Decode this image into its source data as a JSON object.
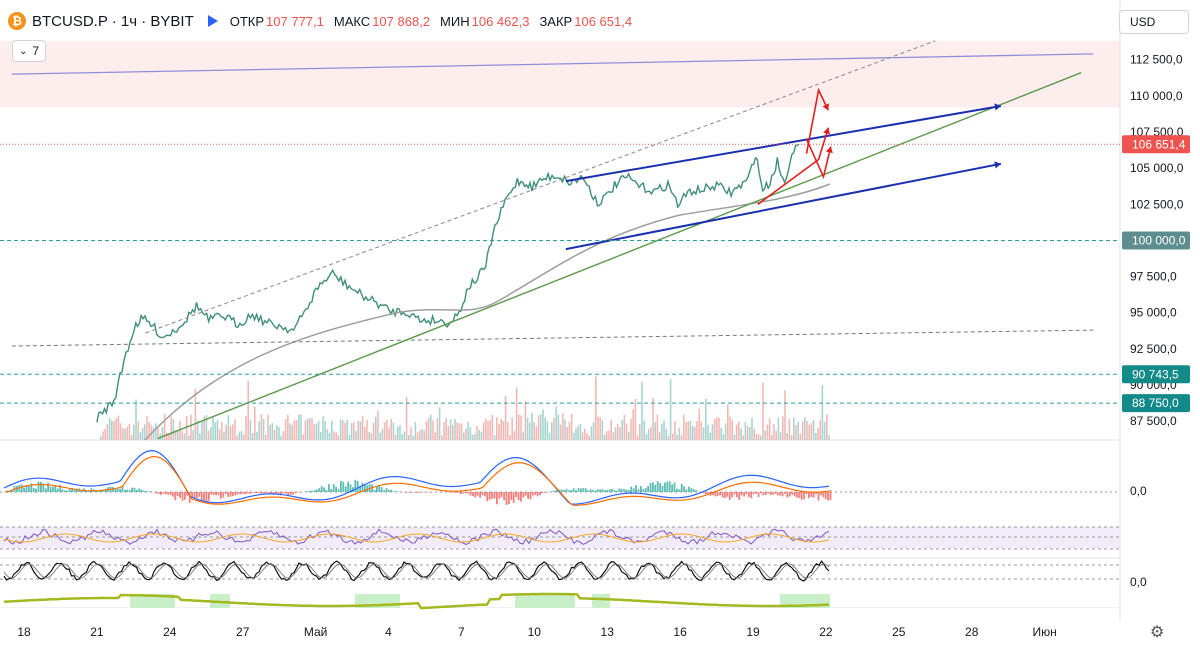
{
  "header": {
    "symbol": "BTCUSD.P · 1ч · BYBIT",
    "open_label": "ОТКР",
    "open_value": "107 777,1",
    "high_label": "МАКС",
    "high_value": "107 868,2",
    "low_label": "МИН",
    "low_value": "106 462,3",
    "close_label": "ЗАКР",
    "close_value": "106 651,4",
    "indicators_count": "7",
    "currency": "USD"
  },
  "chart_data": {
    "type": "line",
    "title": "BTCUSD.P · 1ч · BYBIT",
    "ylim": [
      86200,
      114000
    ],
    "y_ticks": [
      {
        "value": 112500,
        "label": "112 500,0"
      },
      {
        "value": 110000,
        "label": "110 000,0"
      },
      {
        "value": 107500,
        "label": "107 500,0"
      },
      {
        "value": 105000,
        "label": "105 000,0"
      },
      {
        "value": 102500,
        "label": "102 500,0"
      },
      {
        "value": 97500,
        "label": "97 500,0"
      },
      {
        "value": 95000,
        "label": "95 000,0"
      },
      {
        "value": 92500,
        "label": "92 500,0"
      },
      {
        "value": 90000,
        "label": "90 000,0"
      },
      {
        "value": 87500,
        "label": "87 500,0"
      }
    ],
    "price_badges": [
      {
        "value": 106651.4,
        "label": "106 651,4",
        "color": "#ef5350"
      },
      {
        "value": 100000,
        "label": "100 000,0",
        "color": "#5d8d8d"
      },
      {
        "value": 90743.5,
        "label": "90 743,5",
        "color": "#138a8a"
      },
      {
        "value": 88750,
        "label": "88 750,0",
        "color": "#138a8a"
      }
    ],
    "x_ticks": [
      {
        "day": 18,
        "label": "18"
      },
      {
        "day": 21,
        "label": "21"
      },
      {
        "day": 24,
        "label": "24"
      },
      {
        "day": 27,
        "label": "27"
      },
      {
        "day": 30,
        "label": "Май"
      },
      {
        "day": 33,
        "label": "4"
      },
      {
        "day": 36,
        "label": "7"
      },
      {
        "day": 39,
        "label": "10"
      },
      {
        "day": 42,
        "label": "13"
      },
      {
        "day": 45,
        "label": "16"
      },
      {
        "day": 48,
        "label": "19"
      },
      {
        "day": 51,
        "label": "22"
      },
      {
        "day": 54,
        "label": "25"
      },
      {
        "day": 57,
        "label": "28"
      },
      {
        "day": 60,
        "label": "Июн"
      }
    ],
    "series": [
      {
        "name": "BTCUSD close",
        "x": [
          17.6,
          18.5,
          19.5,
          20.3,
          21,
          21.7,
          22.2,
          22.6,
          22.9,
          23.3,
          23.7,
          24.2,
          24.7,
          25.1,
          25.6,
          26.2,
          26.8,
          27.4,
          28,
          28.5,
          29.1,
          29.6,
          30.1,
          30.7,
          31.3,
          31.9,
          32.5,
          33.1,
          33.7,
          34.3,
          34.9,
          35.5,
          35.9,
          36.3,
          36.6,
          37,
          37.3,
          37.8,
          38.3,
          38.6,
          38.9,
          39.4,
          39.9,
          40.5,
          41,
          41.6,
          42,
          42.3,
          42.8,
          43.4,
          44,
          44.5,
          44.9,
          45.4,
          45.9,
          46.5,
          47.1,
          47.5,
          47.8,
          48.1,
          48.4,
          48.7,
          49,
          49.3,
          49.6,
          49.9
        ],
        "y": [
          null,
          null,
          null,
          null,
          87700,
          88900,
          92200,
          94200,
          94600,
          94100,
          93300,
          93800,
          94600,
          95500,
          94500,
          94800,
          94200,
          94900,
          94300,
          94100,
          93800,
          95200,
          96800,
          97700,
          96900,
          96200,
          95700,
          95100,
          95100,
          94500,
          94500,
          94300,
          95000,
          96800,
          97300,
          98200,
          100500,
          102700,
          104100,
          104000,
          103700,
          104300,
          104500,
          104000,
          104400,
          102600,
          103100,
          103800,
          104400,
          103700,
          103400,
          103900,
          102500,
          103400,
          103500,
          103800,
          103300,
          103800,
          104200,
          106000,
          103500,
          104000,
          105500,
          103900,
          106200,
          106651.4
        ]
      }
    ],
    "overlays": {
      "upper_channel": [
        {
          "day": 40.3,
          "value": 104100
        },
        {
          "day": 58.2,
          "value": 109300
        }
      ],
      "lower_channel": [
        {
          "day": 40.3,
          "value": 99400
        },
        {
          "day": 58.2,
          "value": 105300
        }
      ],
      "green_trend": [
        {
          "day": 23.5,
          "value": 86300
        },
        {
          "day": 61.5,
          "value": 111600
        }
      ],
      "purple_trend": [
        {
          "day": 17.5,
          "value": 111500
        },
        {
          "day": 62,
          "value": 112900
        }
      ],
      "dashed_trend": [
        {
          "day": 23,
          "value": 93600
        },
        {
          "day": 55.5,
          "value": 113800
        }
      ],
      "h_levels": [
        100000,
        90743.5,
        88750
      ],
      "resistance_zone": [
        109200,
        113800
      ],
      "support_dashed": [
        {
          "day": 17.5,
          "value": 92700
        },
        {
          "day": 62,
          "value": 93800
        }
      ],
      "forecast_arrows": [
        [
          {
            "day": 48.2,
            "value": 102500
          },
          {
            "day": 50.7,
            "value": 105600
          },
          {
            "day": 51.1,
            "value": 107800
          }
        ],
        [
          {
            "day": 50.2,
            "value": 106000
          },
          {
            "day": 50.7,
            "value": 110400
          },
          {
            "day": 51.1,
            "value": 109000
          }
        ],
        [
          {
            "day": 50.2,
            "value": 107000
          },
          {
            "day": 50.9,
            "value": 104400
          },
          {
            "day": 51.2,
            "value": 106500
          }
        ]
      ]
    },
    "indicator_zero_labels": [
      "0,0",
      "0,0"
    ]
  }
}
